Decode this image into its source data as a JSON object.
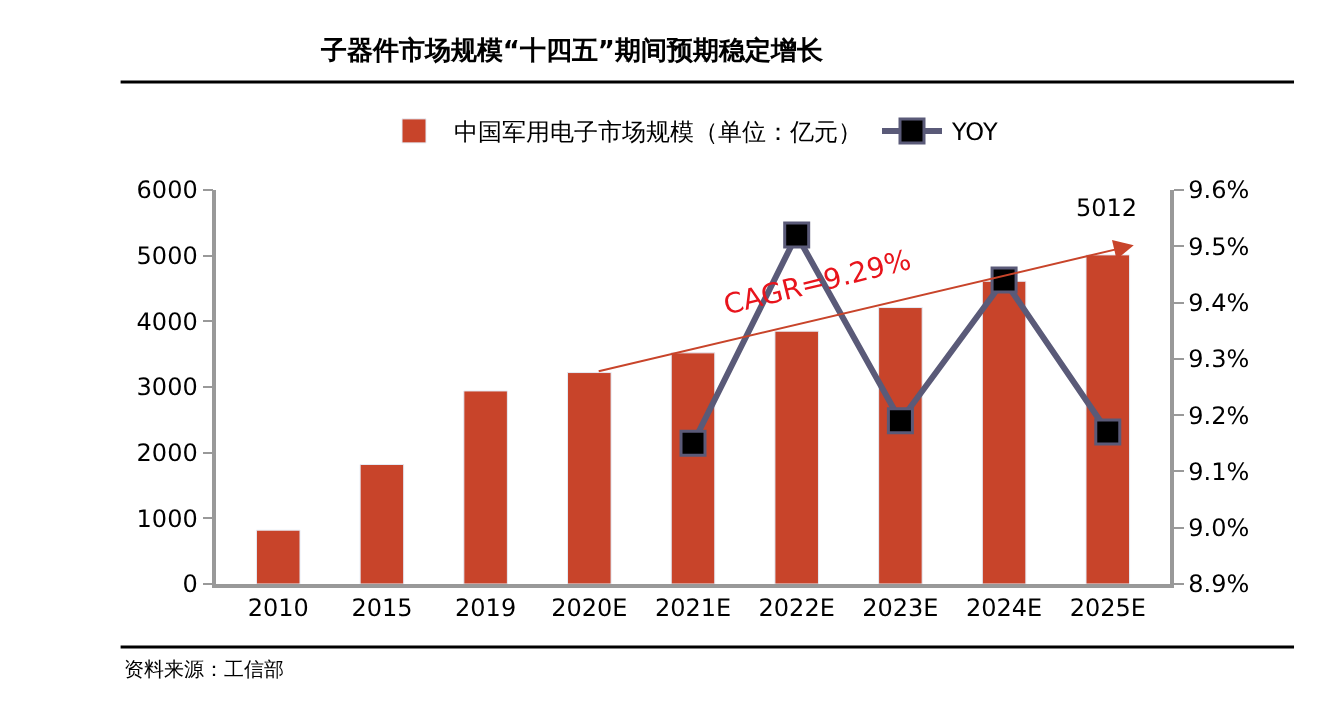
{
  "chart_data": {
    "type": "bar",
    "title": "子器件市场规模“十四五”期间预期稳定增长",
    "categories": [
      "2010",
      "2015",
      "2019",
      "2020E",
      "2021E",
      "2022E",
      "2023E",
      "2024E",
      "2025E"
    ],
    "series": [
      {
        "name": "中国军用电子市场规模（单位：亿元）",
        "color": "#c8442a",
        "values": [
          820,
          1820,
          2940,
          3220,
          3520,
          3850,
          4210,
          4610,
          5012
        ],
        "value_labels": [
          null,
          null,
          null,
          null,
          null,
          null,
          null,
          null,
          "5012"
        ]
      },
      {
        "name": "YOY",
        "type": "line",
        "axis": "y2",
        "color": "#5a5a78",
        "marker": "square",
        "values": [
          null,
          null,
          null,
          null,
          9.15,
          9.52,
          9.19,
          9.44,
          9.17
        ]
      }
    ],
    "ylim": [
      0,
      6000
    ],
    "yticks": [
      0,
      1000,
      2000,
      3000,
      4000,
      5000,
      6000
    ],
    "y2lim": [
      8.9,
      9.6
    ],
    "y2ticks": [
      {
        "value": 8.9,
        "label": "8.9%"
      },
      {
        "value": 9.0,
        "label": "9.0%"
      },
      {
        "value": 9.1,
        "label": "9.1%"
      },
      {
        "value": 9.2,
        "label": "9.2%"
      },
      {
        "value": 9.3,
        "label": "9.3%"
      },
      {
        "value": 9.4,
        "label": "9.4%"
      },
      {
        "value": 9.5,
        "label": "9.5%"
      },
      {
        "value": 9.6,
        "label": "9.6%"
      }
    ],
    "annotations": [
      "CAGR=9.29%",
      "资料来源：工信部"
    ],
    "legend": "top"
  }
}
